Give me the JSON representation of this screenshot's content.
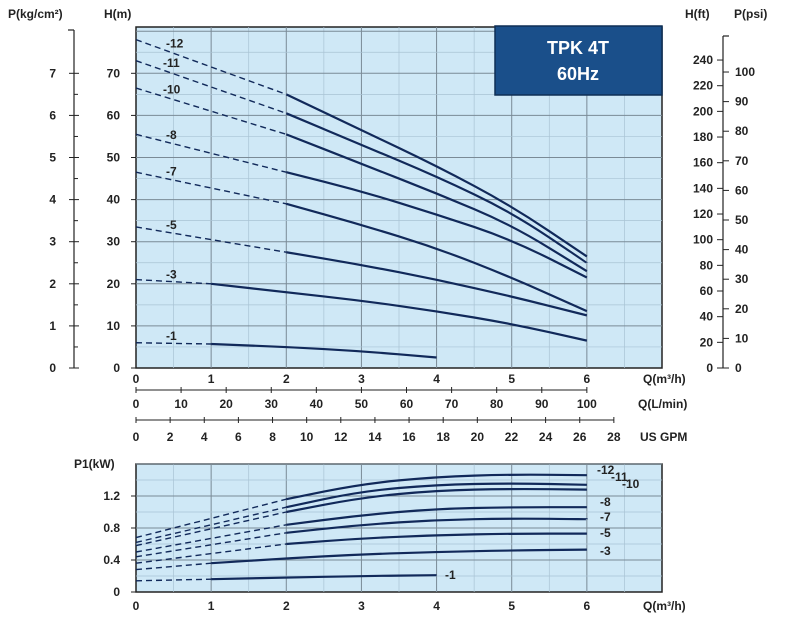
{
  "chart_data": [
    {
      "type": "line",
      "title": "TPK 4T",
      "subtitle": "60Hz",
      "xlabel": "Q(m³/h)",
      "ylabel": "H(m)",
      "xlim": [
        0,
        7
      ],
      "ylim": [
        0,
        81
      ],
      "grid": true,
      "x_ticks": [
        "0",
        "1",
        "2",
        "3",
        "4",
        "5",
        "6"
      ],
      "y_ticks": [
        "0",
        "10",
        "20",
        "30",
        "40",
        "50",
        "60",
        "70"
      ],
      "secondary_axes": {
        "left_pressure": {
          "label": "P(kg/cm²)",
          "ticks": [
            "0",
            "1",
            "2",
            "3",
            "4",
            "5",
            "6",
            "7"
          ],
          "values": [
            0,
            1,
            2,
            3,
            4,
            5,
            6,
            7
          ]
        },
        "right_head_ft": {
          "label": "H(ft)",
          "ticks": [
            "0",
            "20",
            "40",
            "60",
            "80",
            "100",
            "120",
            "140",
            "160",
            "180",
            "200",
            "220",
            "240"
          ],
          "values": [
            0,
            20,
            40,
            60,
            80,
            100,
            120,
            140,
            160,
            180,
            200,
            220,
            240
          ]
        },
        "right_pressure_psi": {
          "label": "P(psi)",
          "ticks": [
            "0",
            "10",
            "20",
            "30",
            "40",
            "50",
            "60",
            "70",
            "80",
            "90",
            "100"
          ],
          "values": [
            0,
            10,
            20,
            30,
            40,
            50,
            60,
            70,
            80,
            90,
            100
          ]
        },
        "flow_lmin": {
          "label": "Q(L/min)",
          "ticks": [
            "0",
            "10",
            "20",
            "30",
            "40",
            "50",
            "60",
            "70",
            "80",
            "90",
            "100"
          ],
          "values": [
            0,
            10,
            20,
            30,
            40,
            50,
            60,
            70,
            80,
            90,
            100
          ]
        },
        "flow_usgpm": {
          "label": "US GPM",
          "ticks": [
            "0",
            "2",
            "4",
            "6",
            "8",
            "10",
            "12",
            "14",
            "16",
            "18",
            "20",
            "22",
            "24",
            "26",
            "28"
          ],
          "values": [
            0,
            2,
            4,
            6,
            8,
            10,
            12,
            14,
            16,
            18,
            20,
            22,
            24,
            26,
            28
          ]
        }
      },
      "series": [
        {
          "name": "-12",
          "dashed_x": [
            0,
            2
          ],
          "dashed_y": [
            78,
            65
          ],
          "x": [
            2,
            3,
            4,
            5,
            6
          ],
          "y": [
            65,
            56.5,
            48,
            38.5,
            26.5
          ]
        },
        {
          "name": "-11",
          "dashed_x": [
            0,
            2
          ],
          "dashed_y": [
            73,
            60.5
          ],
          "x": [
            2,
            3,
            4,
            5,
            6
          ],
          "y": [
            60.5,
            53,
            45.5,
            37,
            25
          ]
        },
        {
          "name": "-10",
          "dashed_x": [
            0,
            2
          ],
          "dashed_y": [
            66.5,
            55.5
          ],
          "x": [
            2,
            3,
            4,
            5,
            6
          ],
          "y": [
            55.5,
            48.5,
            41.5,
            34,
            23
          ]
        },
        {
          "name": "-8",
          "dashed_x": [
            0,
            2
          ],
          "dashed_y": [
            55.5,
            46.5
          ],
          "x": [
            2,
            3,
            4,
            5,
            6
          ],
          "y": [
            46.5,
            42,
            36.5,
            30.5,
            21.5
          ]
        },
        {
          "name": "-7",
          "dashed_x": [
            0,
            2
          ],
          "dashed_y": [
            46.5,
            39
          ],
          "x": [
            2,
            3,
            4,
            5,
            6
          ],
          "y": [
            39,
            34,
            28.5,
            21.5,
            13.5
          ]
        },
        {
          "name": "-5",
          "dashed_x": [
            0,
            2
          ],
          "dashed_y": [
            33.5,
            27.5
          ],
          "x": [
            2,
            3,
            4,
            5,
            6
          ],
          "y": [
            27.5,
            24.5,
            21,
            17,
            12.5
          ]
        },
        {
          "name": "-3",
          "dashed_x": [
            0,
            1
          ],
          "dashed_y": [
            21,
            20
          ],
          "x": [
            1,
            2,
            3,
            4,
            5,
            6
          ],
          "y": [
            20,
            18,
            16,
            13.5,
            10.5,
            6.5
          ]
        },
        {
          "name": "-1",
          "dashed_x": [
            0,
            1
          ],
          "dashed_y": [
            6,
            5.7
          ],
          "x": [
            1,
            2,
            3,
            4
          ],
          "y": [
            5.7,
            5,
            4,
            2.5
          ]
        }
      ]
    },
    {
      "type": "line",
      "xlabel": "Q(m³/h)",
      "ylabel": "P1(kW)",
      "xlim": [
        0,
        7
      ],
      "ylim": [
        0,
        1.6
      ],
      "grid": true,
      "x_ticks": [
        "0",
        "1",
        "2",
        "3",
        "4",
        "5",
        "6"
      ],
      "y_ticks": [
        "0",
        "0.4",
        "0.8",
        "1.2"
      ],
      "y_tick_values": [
        0,
        0.4,
        0.8,
        1.2
      ],
      "series": [
        {
          "name": "-12",
          "dashed_x": [
            0,
            2
          ],
          "dashed_y": [
            0.68,
            1.16
          ],
          "x": [
            2,
            3,
            4,
            5,
            6
          ],
          "y": [
            1.16,
            1.35,
            1.44,
            1.47,
            1.46
          ]
        },
        {
          "name": "-11",
          "dashed_x": [
            0,
            2
          ],
          "dashed_y": [
            0.62,
            1.06
          ],
          "x": [
            2,
            3,
            4,
            5,
            6
          ],
          "y": [
            1.06,
            1.26,
            1.34,
            1.36,
            1.34
          ]
        },
        {
          "name": "-10",
          "dashed_x": [
            0,
            2
          ],
          "dashed_y": [
            0.58,
            1.0
          ],
          "x": [
            2,
            3,
            4,
            5,
            6
          ],
          "y": [
            1.0,
            1.18,
            1.27,
            1.29,
            1.28
          ]
        },
        {
          "name": "-8",
          "dashed_x": [
            0,
            2
          ],
          "dashed_y": [
            0.5,
            0.84
          ],
          "x": [
            2,
            3,
            4,
            5,
            6
          ],
          "y": [
            0.84,
            0.96,
            1.04,
            1.06,
            1.06
          ]
        },
        {
          "name": "-7",
          "dashed_x": [
            0,
            2
          ],
          "dashed_y": [
            0.44,
            0.74
          ],
          "x": [
            2,
            3,
            4,
            5,
            6
          ],
          "y": [
            0.74,
            0.84,
            0.9,
            0.92,
            0.91
          ]
        },
        {
          "name": "-5",
          "dashed_x": [
            0,
            2
          ],
          "dashed_y": [
            0.36,
            0.6
          ],
          "x": [
            2,
            3,
            4,
            5,
            6
          ],
          "y": [
            0.6,
            0.67,
            0.71,
            0.73,
            0.73
          ]
        },
        {
          "name": "-3",
          "dashed_x": [
            0,
            1
          ],
          "dashed_y": [
            0.28,
            0.36
          ],
          "x": [
            1,
            2,
            3,
            4,
            5,
            6
          ],
          "y": [
            0.36,
            0.42,
            0.47,
            0.5,
            0.52,
            0.53
          ]
        },
        {
          "name": "-1",
          "dashed_x": [
            0,
            1
          ],
          "dashed_y": [
            0.14,
            0.16
          ],
          "x": [
            1,
            2,
            3,
            4
          ],
          "y": [
            0.16,
            0.18,
            0.2,
            0.21
          ]
        }
      ]
    }
  ]
}
